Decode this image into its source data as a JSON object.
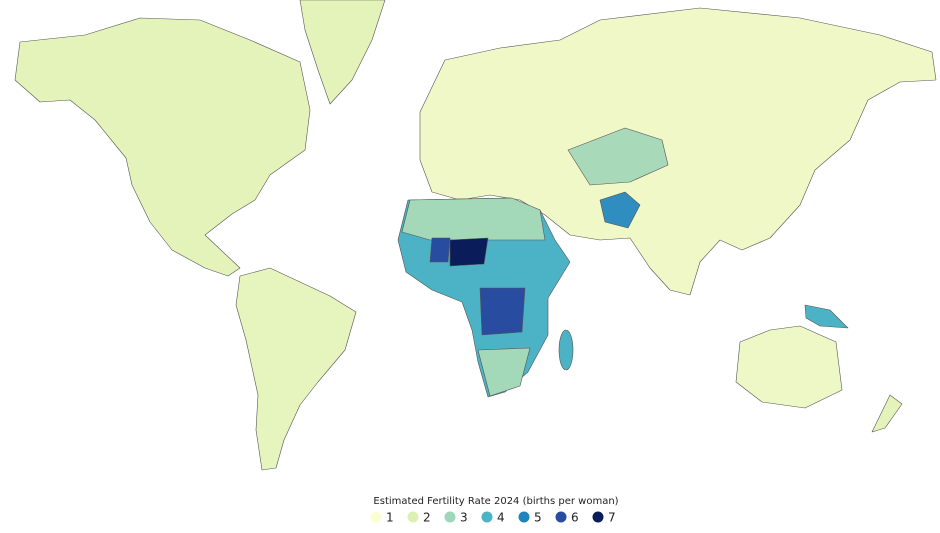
{
  "legend": {
    "title": "Estimated Fertility Rate 2024 (births per woman)",
    "items": [
      {
        "label": 1,
        "color": "#fbfdd2"
      },
      {
        "label": 2,
        "color": "#dcf0b4"
      },
      {
        "label": 3,
        "color": "#9dd6b8"
      },
      {
        "label": 4,
        "color": "#4cb2c6"
      },
      {
        "label": 5,
        "color": "#1f84bb"
      },
      {
        "label": 6,
        "color": "#284da0"
      },
      {
        "label": 7,
        "color": "#0a1d5a"
      }
    ]
  }
}
